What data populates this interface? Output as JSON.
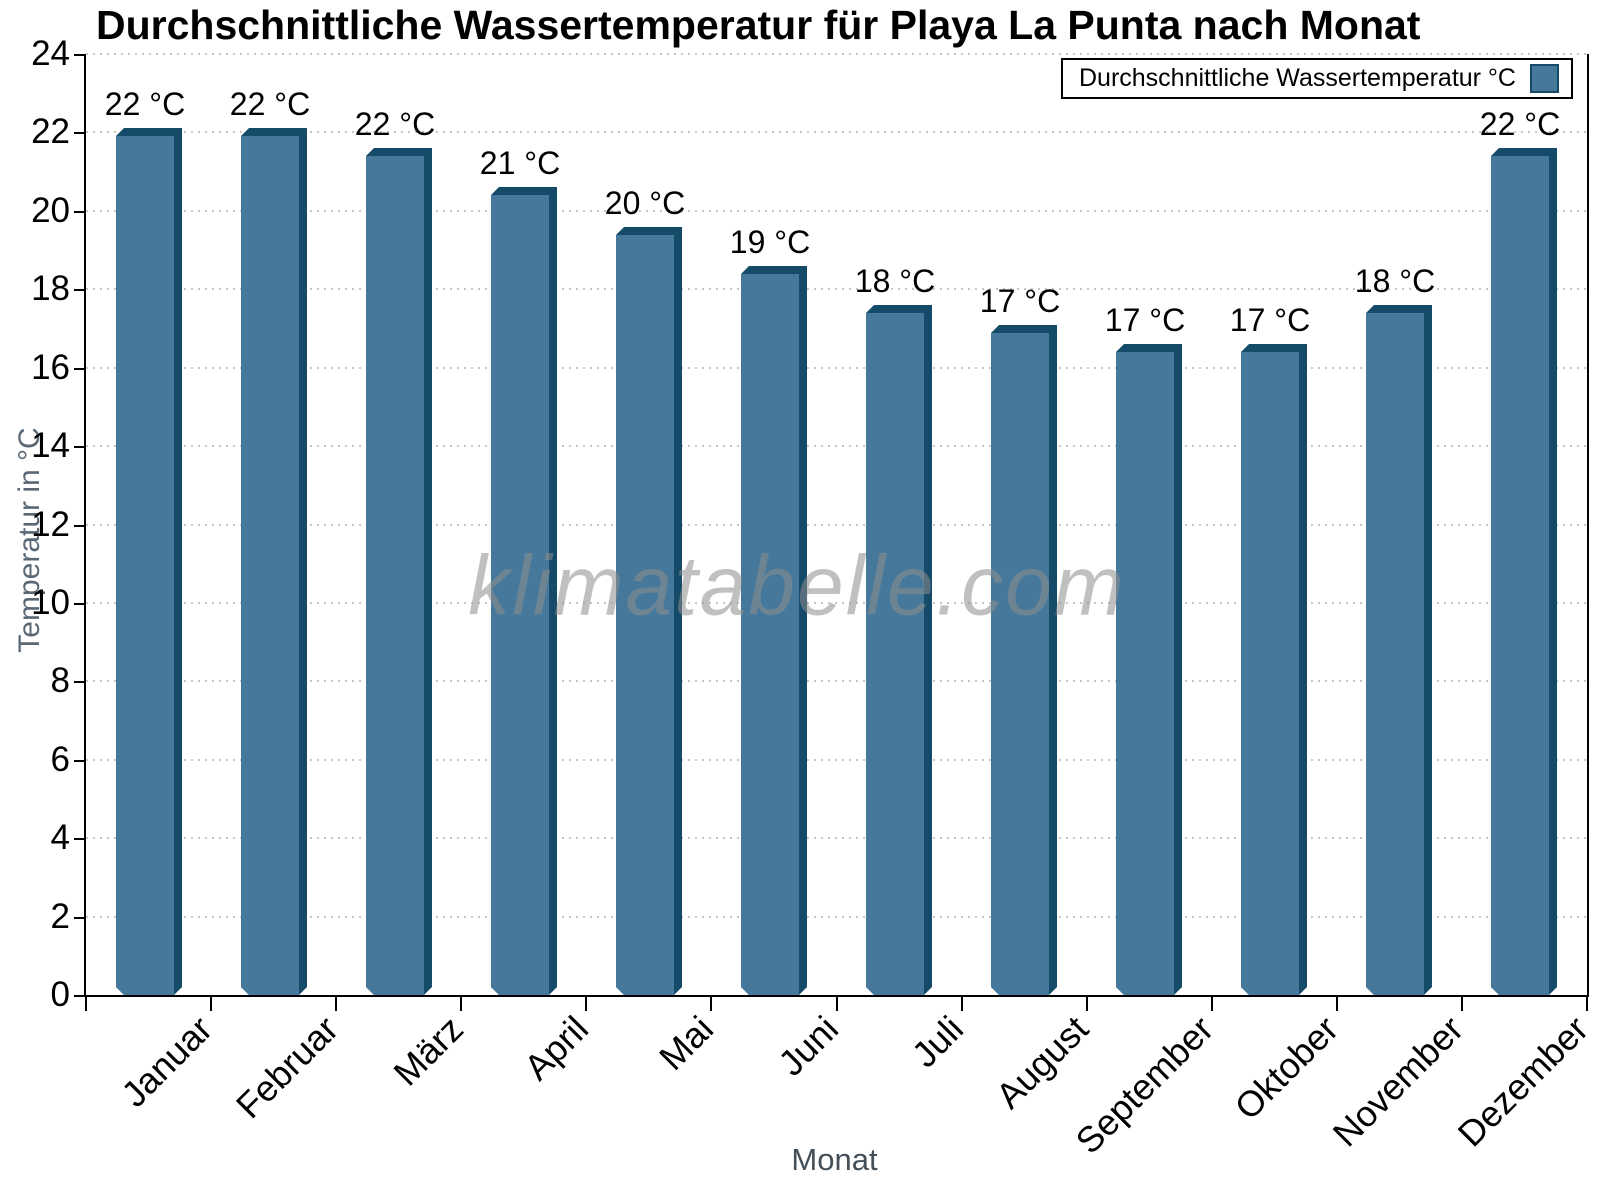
{
  "title": "Durchschnittliche Wassertemperatur für Playa La Punta nach Monat",
  "watermark": "klimatabelle.com",
  "legend": {
    "label": "Durchschnittliche Wassertemperatur °C"
  },
  "chart_data": {
    "type": "bar",
    "title": "Durchschnittliche Wassertemperatur für Playa La Punta nach Monat",
    "xlabel": "Monat",
    "ylabel": "Temperatur in °C",
    "categories": [
      "Januar",
      "Februar",
      "März",
      "April",
      "Mai",
      "Juni",
      "Juli",
      "August",
      "September",
      "Oktober",
      "November",
      "Dezember"
    ],
    "values": [
      22.1,
      22.1,
      21.6,
      20.6,
      19.6,
      18.6,
      17.6,
      17.1,
      16.6,
      16.6,
      17.6,
      21.6
    ],
    "bar_labels": [
      "22 °C",
      "22 °C",
      "22 °C",
      "21 °C",
      "20 °C",
      "19 °C",
      "18 °C",
      "17 °C",
      "17 °C",
      "17 °C",
      "18 °C",
      "22 °C"
    ],
    "ylim": [
      0,
      24
    ],
    "ytick_step": 2,
    "grid": true,
    "legend_entries": [
      "Durchschnittliche Wassertemperatur °C"
    ],
    "legend_position": "top-right",
    "colors": {
      "bar_face": "#45789b",
      "bar_edge": "#154a68",
      "grid": "#c6c6c6",
      "axis": "#000000",
      "ylabel_text": "#5a6875",
      "xlabel_text": "#454f58",
      "watermark_text": "#8e8e8e"
    }
  }
}
